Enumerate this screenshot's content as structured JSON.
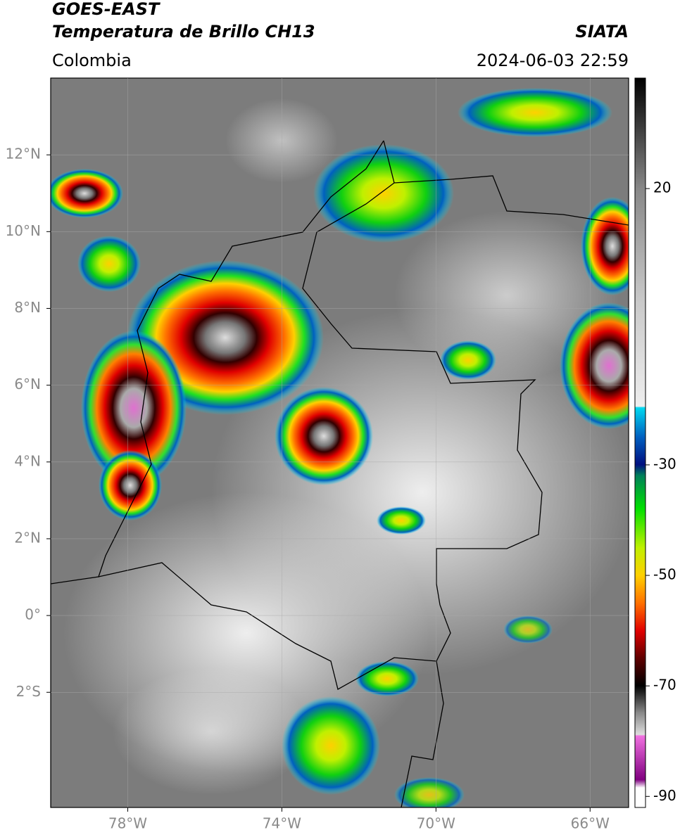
{
  "header": {
    "title": "GOES-EAST",
    "subtitle": "Temperatura de Brillo CH13",
    "region": "Colombia",
    "source": "SIATA",
    "timestamp": "2024-06-03 22:59"
  },
  "map": {
    "xlim": [
      -80,
      -65
    ],
    "ylim": [
      -5,
      14
    ],
    "xticks": [
      {
        "value": -78,
        "label": "78°W"
      },
      {
        "value": -74,
        "label": "74°W"
      },
      {
        "value": -70,
        "label": "70°W"
      },
      {
        "value": -66,
        "label": "66°W"
      }
    ],
    "yticks": [
      {
        "value": 12,
        "label": "12°N"
      },
      {
        "value": 10,
        "label": "10°N"
      },
      {
        "value": 8,
        "label": "8°N"
      },
      {
        "value": 6,
        "label": "6°N"
      },
      {
        "value": 4,
        "label": "4°N"
      },
      {
        "value": 2,
        "label": "2°N"
      },
      {
        "value": 0,
        "label": "0°"
      },
      {
        "value": -2,
        "label": "2°S"
      }
    ]
  },
  "colorbar": {
    "lim": [
      -92,
      40
    ],
    "ticks": [
      20,
      -30,
      -50,
      -70,
      -90
    ]
  }
}
